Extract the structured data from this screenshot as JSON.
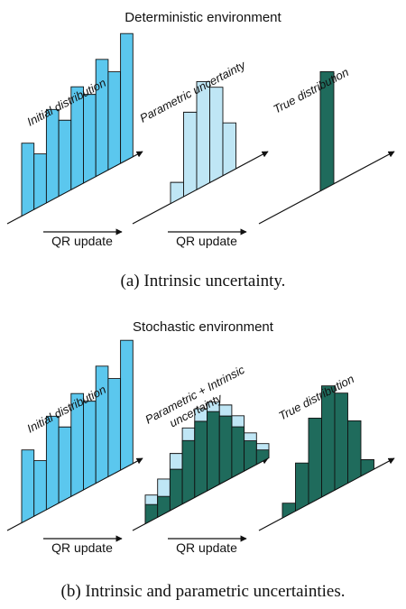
{
  "colors": {
    "light_blue": "#5bc7ee",
    "pale_blue": "#bfe6f5",
    "dark_teal": "#1f6b5c",
    "axis": "#111111"
  },
  "panel_a": {
    "heading": "Deterministic environment",
    "caption": "(a) Intrinsic uncertainty.",
    "arrow_label_1": "QR update",
    "arrow_label_2": "QR update",
    "charts": [
      {
        "label": "Initial distribution",
        "series": [
          {
            "name": "initial",
            "color": "light_blue",
            "values": [
              0.42,
              0.31,
              0.55,
              0.44,
              0.61,
              0.52,
              0.7,
              0.58,
              0.78
            ]
          }
        ]
      },
      {
        "label": "Parametric uncertainty",
        "series": [
          {
            "name": "parametric",
            "color": "pale_blue",
            "values": [
              0.09,
              0.49,
              0.64,
              0.56,
              0.29
            ]
          }
        ]
      },
      {
        "label": "True distribution",
        "series": [
          {
            "name": "true",
            "color": "dark_teal",
            "values": [
              0.71
            ]
          }
        ]
      }
    ]
  },
  "panel_b": {
    "heading": "Stochastic environment",
    "caption": "(b) Intrinsic and parametric uncertainties.",
    "arrow_label_1": "QR update",
    "arrow_label_2": "QR update",
    "charts": [
      {
        "label": "Initial distribution",
        "series": [
          {
            "name": "initial",
            "color": "light_blue",
            "values": [
              0.42,
              0.31,
              0.55,
              0.44,
              0.61,
              0.52,
              0.7,
              0.58,
              0.78
            ]
          }
        ]
      },
      {
        "label": "Parametric + Intrinsic\nuncertainty",
        "series": [
          {
            "name": "parametric",
            "color": "pale_blue",
            "values": [
              0.14,
              0.2,
              0.32,
              0.44,
              0.52,
              0.52,
              0.46,
              0.35,
              0.2,
              0.09
            ]
          },
          {
            "name": "intrinsic",
            "color": "dark_teal",
            "values": [
              0.08,
              0.09,
              0.22,
              0.36,
              0.44,
              0.46,
              0.39,
              0.28,
              0.15,
              0.05
            ]
          }
        ]
      },
      {
        "label": "True distribution",
        "series": [
          {
            "name": "true",
            "color": "dark_teal",
            "values": [
              0.05,
              0.26,
              0.5,
              0.66,
              0.57,
              0.35,
              0.06
            ]
          }
        ]
      }
    ]
  },
  "chart_data": [
    {
      "type": "bar",
      "title": "Deterministic environment — Initial distribution",
      "values": [
        0.42,
        0.31,
        0.55,
        0.44,
        0.61,
        0.52,
        0.7,
        0.58,
        0.78
      ],
      "xlabel": "",
      "ylabel": ""
    },
    {
      "type": "bar",
      "title": "Deterministic environment — Parametric uncertainty",
      "values": [
        0.09,
        0.49,
        0.64,
        0.56,
        0.29
      ],
      "xlabel": "",
      "ylabel": ""
    },
    {
      "type": "bar",
      "title": "Deterministic environment — True distribution",
      "values": [
        0.71
      ],
      "xlabel": "",
      "ylabel": ""
    },
    {
      "type": "bar",
      "title": "Stochastic environment — Initial distribution",
      "values": [
        0.42,
        0.31,
        0.55,
        0.44,
        0.61,
        0.52,
        0.7,
        0.58,
        0.78
      ],
      "xlabel": "",
      "ylabel": ""
    },
    {
      "type": "bar",
      "title": "Stochastic environment — Parametric + Intrinsic uncertainty",
      "series": [
        {
          "name": "parametric",
          "values": [
            0.14,
            0.2,
            0.32,
            0.44,
            0.52,
            0.52,
            0.46,
            0.35,
            0.2,
            0.09
          ]
        },
        {
          "name": "intrinsic",
          "values": [
            0.08,
            0.09,
            0.22,
            0.36,
            0.44,
            0.46,
            0.39,
            0.28,
            0.15,
            0.05
          ]
        }
      ],
      "xlabel": "",
      "ylabel": ""
    },
    {
      "type": "bar",
      "title": "Stochastic environment — True distribution",
      "values": [
        0.05,
        0.26,
        0.5,
        0.66,
        0.57,
        0.35,
        0.06
      ],
      "xlabel": "",
      "ylabel": ""
    }
  ]
}
